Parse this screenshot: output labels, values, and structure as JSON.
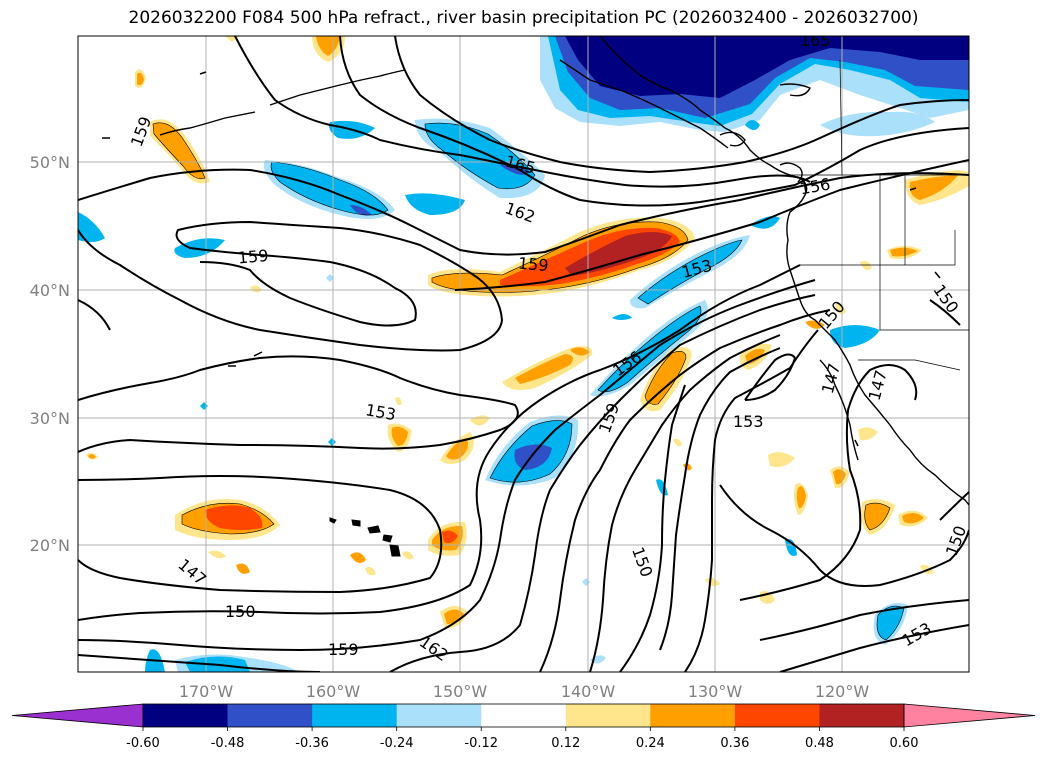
{
  "title": "2026032200 F084 500 hPa refract., river basin precipitation PC (2026032400 - 2026032700)",
  "lat_labels": [
    "50°N",
    "40°N",
    "30°N",
    "20°N"
  ],
  "lon_labels": [
    "170°W",
    "160°W",
    "150°W",
    "140°W",
    "130°W",
    "120°W"
  ],
  "contour_labels": [
    "165",
    "159",
    "165",
    "162",
    "159",
    "159",
    "153",
    "156",
    "159",
    "153",
    "150",
    "147",
    "153",
    "150",
    "147",
    "150",
    "159",
    "162",
    "150",
    "153",
    "150",
    "156",
    "153"
  ],
  "colorbar": {
    "ticks": [
      "-0.60",
      "-0.48",
      "-0.36",
      "-0.24",
      "-0.12",
      "0.12",
      "0.24",
      "0.36",
      "0.48",
      "0.60"
    ],
    "colors": [
      "#9b30d0",
      "#000080",
      "#3050c8",
      "#00b4f0",
      "#aae0fa",
      "#ffffff",
      "#ffe68c",
      "#ffa000",
      "#ff4600",
      "#b22222",
      "#ff82a0"
    ]
  }
}
